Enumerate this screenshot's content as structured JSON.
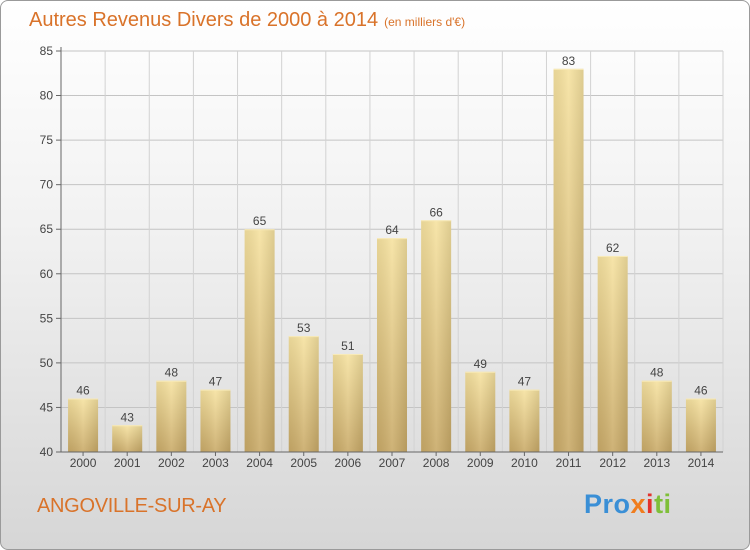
{
  "header": {
    "title": "Autres Revenus Divers de 2000 à 2014",
    "unit": "(en milliers d'€)"
  },
  "footer": {
    "place": "ANGOVILLE-SUR-AY",
    "logo": [
      "Pro",
      "x",
      "i",
      "ti"
    ]
  },
  "colors": {
    "title": "#d9732a",
    "bar_light": "#f6e2a0",
    "bar_dark": "#c9aa68"
  },
  "chart_data": {
    "type": "bar",
    "title": "Autres Revenus Divers de 2000 à 2014",
    "xlabel": "",
    "ylabel": "",
    "categories": [
      "2000",
      "2001",
      "2002",
      "2003",
      "2004",
      "2005",
      "2006",
      "2007",
      "2008",
      "2009",
      "2010",
      "2011",
      "2012",
      "2013",
      "2014"
    ],
    "values": [
      46,
      43,
      48,
      47,
      65,
      53,
      51,
      64,
      66,
      49,
      47,
      83,
      62,
      48,
      46
    ],
    "ylim": [
      40,
      85
    ],
    "yticks": [
      40,
      45,
      50,
      55,
      60,
      65,
      70,
      75,
      80,
      85
    ],
    "grid": true,
    "legend": "none"
  }
}
